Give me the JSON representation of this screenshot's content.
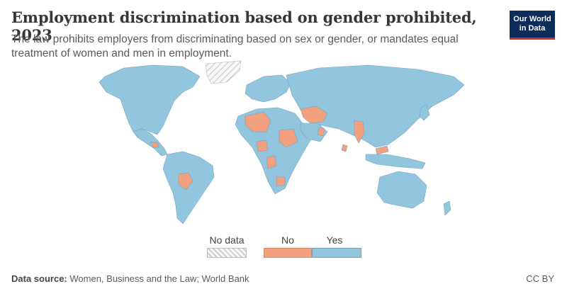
{
  "title": "Employment discrimination based on gender prohibited, 2023",
  "subtitle": "The law prohibits employers from discriminating based on sex or gender, or mandates equal treatment of women and men in employment.",
  "logo": {
    "line1": "Our World",
    "line2": "in Data"
  },
  "legend": {
    "items": [
      {
        "label": "No data",
        "color": "#f0f0f0"
      },
      {
        "label": "No",
        "color": "#f3a07e"
      },
      {
        "label": "Yes",
        "color": "#92c5de"
      }
    ]
  },
  "colors": {
    "yes": "#92c5de",
    "no": "#f3a07e",
    "border": "#7ba3c0",
    "nodata": "#e6e6e6"
  },
  "footer": {
    "source_label": "Data source:",
    "source_text": "Women, Business and the Law; World Bank",
    "license": "CC BY"
  }
}
